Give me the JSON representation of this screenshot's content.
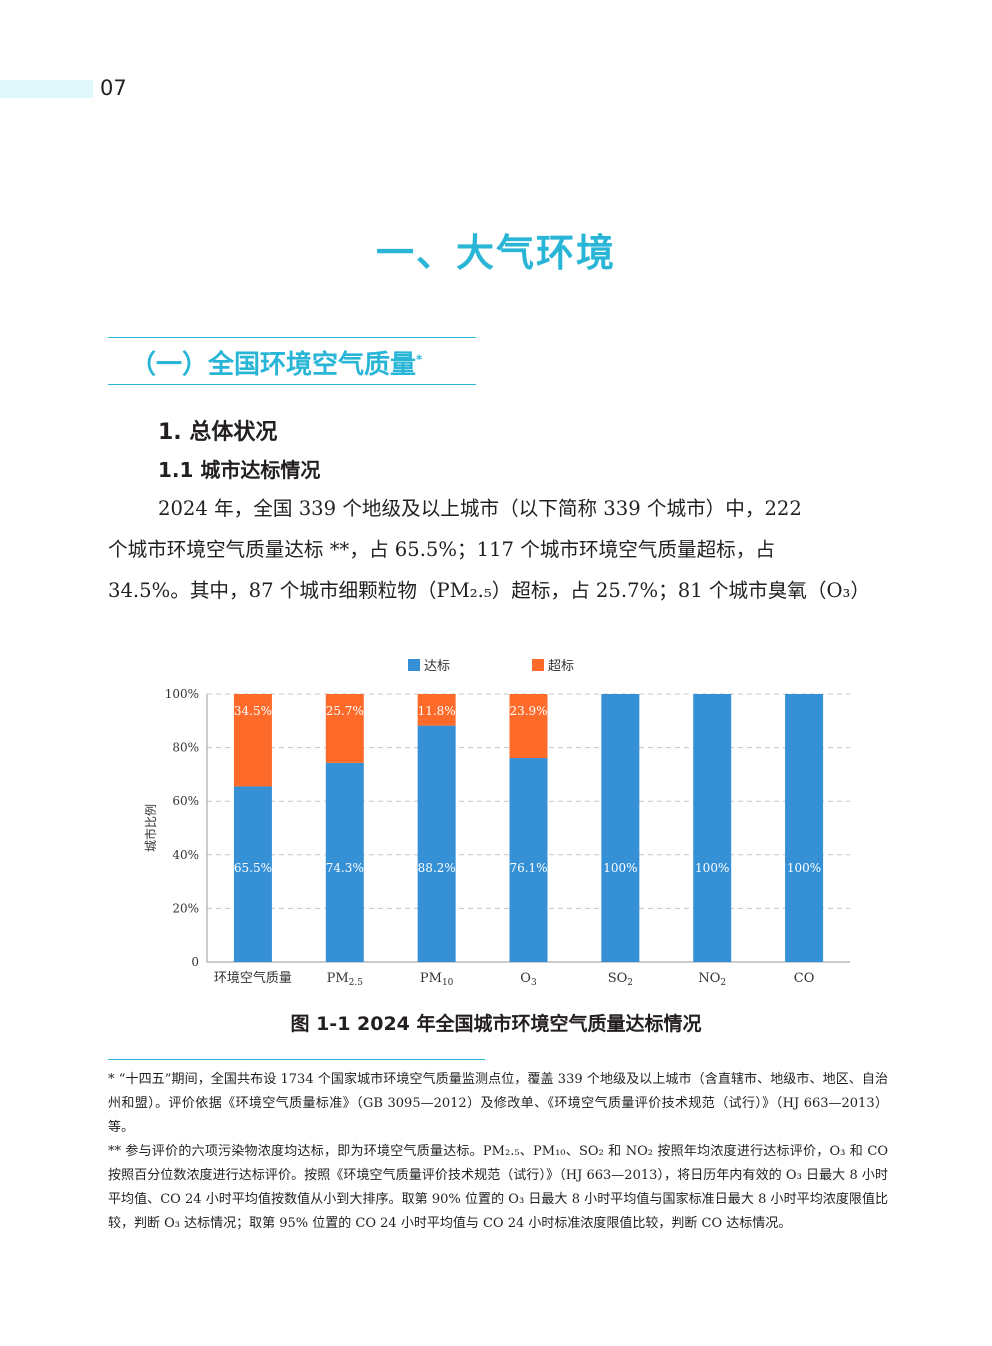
{
  "page_number": "07",
  "chapter_title": "一、大气环境",
  "section_title": "（一）全国环境空气质量",
  "section_marker": "*",
  "heading_1": "1. 总体状况",
  "heading_2": "1.1 城市达标情况",
  "body": {
    "line1": "2024 年，全国 339 个地级及以上城市（以下简称 339 个城市）中，222",
    "line2": "个城市环境空气质量达标 **，占 65.5%；117 个城市环境空气质量超标，占",
    "line3": "34.5%。其中，87 个城市细颗粒物（PM₂.₅）超标，占 25.7%；81 个城市臭氧（O₃）"
  },
  "chart_data": {
    "type": "bar",
    "stacked": true,
    "categories": [
      "环境空气质量",
      "PM2.5",
      "PM10",
      "O3",
      "SO2",
      "NO2",
      "CO"
    ],
    "series": [
      {
        "name": "达标",
        "color": "#3590d6",
        "values": [
          65.5,
          74.3,
          88.2,
          76.1,
          100,
          100,
          100
        ],
        "labels": [
          "65.5%",
          "74.3%",
          "88.2%",
          "76.1%",
          "100%",
          "100%",
          "100%"
        ]
      },
      {
        "name": "超标",
        "color": "#fd6a2a",
        "values": [
          34.5,
          25.7,
          11.8,
          23.9,
          0,
          0,
          0
        ],
        "labels": [
          "34.5%",
          "25.7%",
          "11.8%",
          "23.9%",
          "",
          "",
          ""
        ]
      }
    ],
    "ylabel": "城市比例",
    "yticks": [
      "0",
      "20%",
      "40%",
      "60%",
      "80%",
      "100%"
    ],
    "ylim": [
      0,
      100
    ],
    "grid": true,
    "legend_position": "top"
  },
  "figure_caption": "图 1-1 2024 年全国城市环境空气质量达标情况",
  "footnotes": {
    "fn1": "* “十四五”期间，全国共布设 1734 个国家城市环境空气质量监测点位，覆盖 339 个地级及以上城市（含直辖市、地级市、地区、自治州和盟）。评价依据《环境空气质量标准》（GB 3095—2012）及修改单、《环境空气质量评价技术规范（试行）》（HJ 663—2013）等。",
    "fn2": "** 参与评价的六项污染物浓度均达标，即为环境空气质量达标。PM₂.₅、PM₁₀、SO₂ 和 NO₂ 按照年均浓度进行达标评价，O₃ 和 CO 按照百分位数浓度进行达标评价。按照《环境空气质量评价技术规范（试行）》（HJ 663—2013），将日历年内有效的 O₃ 日最大 8 小时平均值、CO 24 小时平均值按数值从小到大排序。取第 90% 位置的 O₃ 日最大 8 小时平均值与国家标准日最大 8 小时平均浓度限值比较，判断 O₃ 达标情况；取第 95% 位置的 CO 24 小时平均值与 CO 24 小时标准浓度限值比较，判断 CO 达标情况。"
  }
}
